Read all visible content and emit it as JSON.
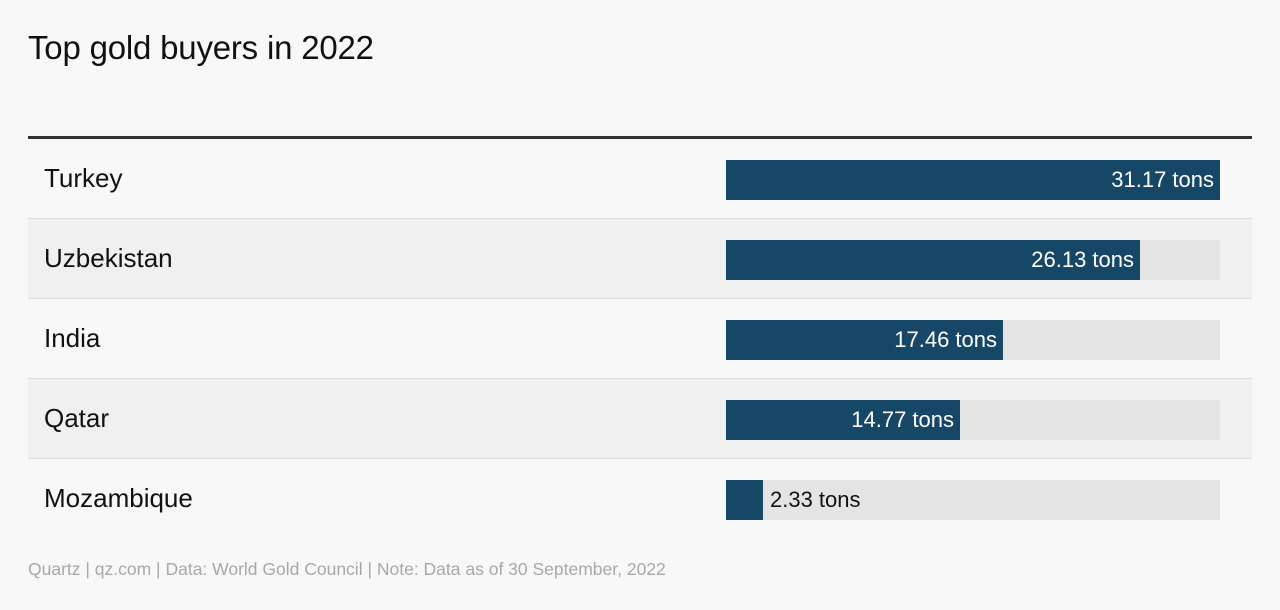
{
  "chart_data": {
    "type": "bar",
    "orientation": "horizontal",
    "title": "Top gold buyers in 2022",
    "categories": [
      "Turkey",
      "Uzbekistan",
      "India",
      "Qatar",
      "Mozambique"
    ],
    "values": [
      31.17,
      26.13,
      17.46,
      14.77,
      2.33
    ],
    "value_labels": [
      "31.17 tons",
      "26.13 tons",
      "17.46 tons",
      "14.77 tons",
      "2.33 tons"
    ],
    "xlim": [
      0,
      31.17
    ],
    "grid": false,
    "legend": "none"
  },
  "footer": {
    "source": "Quartz | qz.com | Data: World Gold Council | Note: Data as of 30 September, 2022"
  },
  "colors": {
    "bar": "#174766",
    "track": "#e4e4e4",
    "label_inside": "#ffffff",
    "label_outside": "#111111"
  }
}
